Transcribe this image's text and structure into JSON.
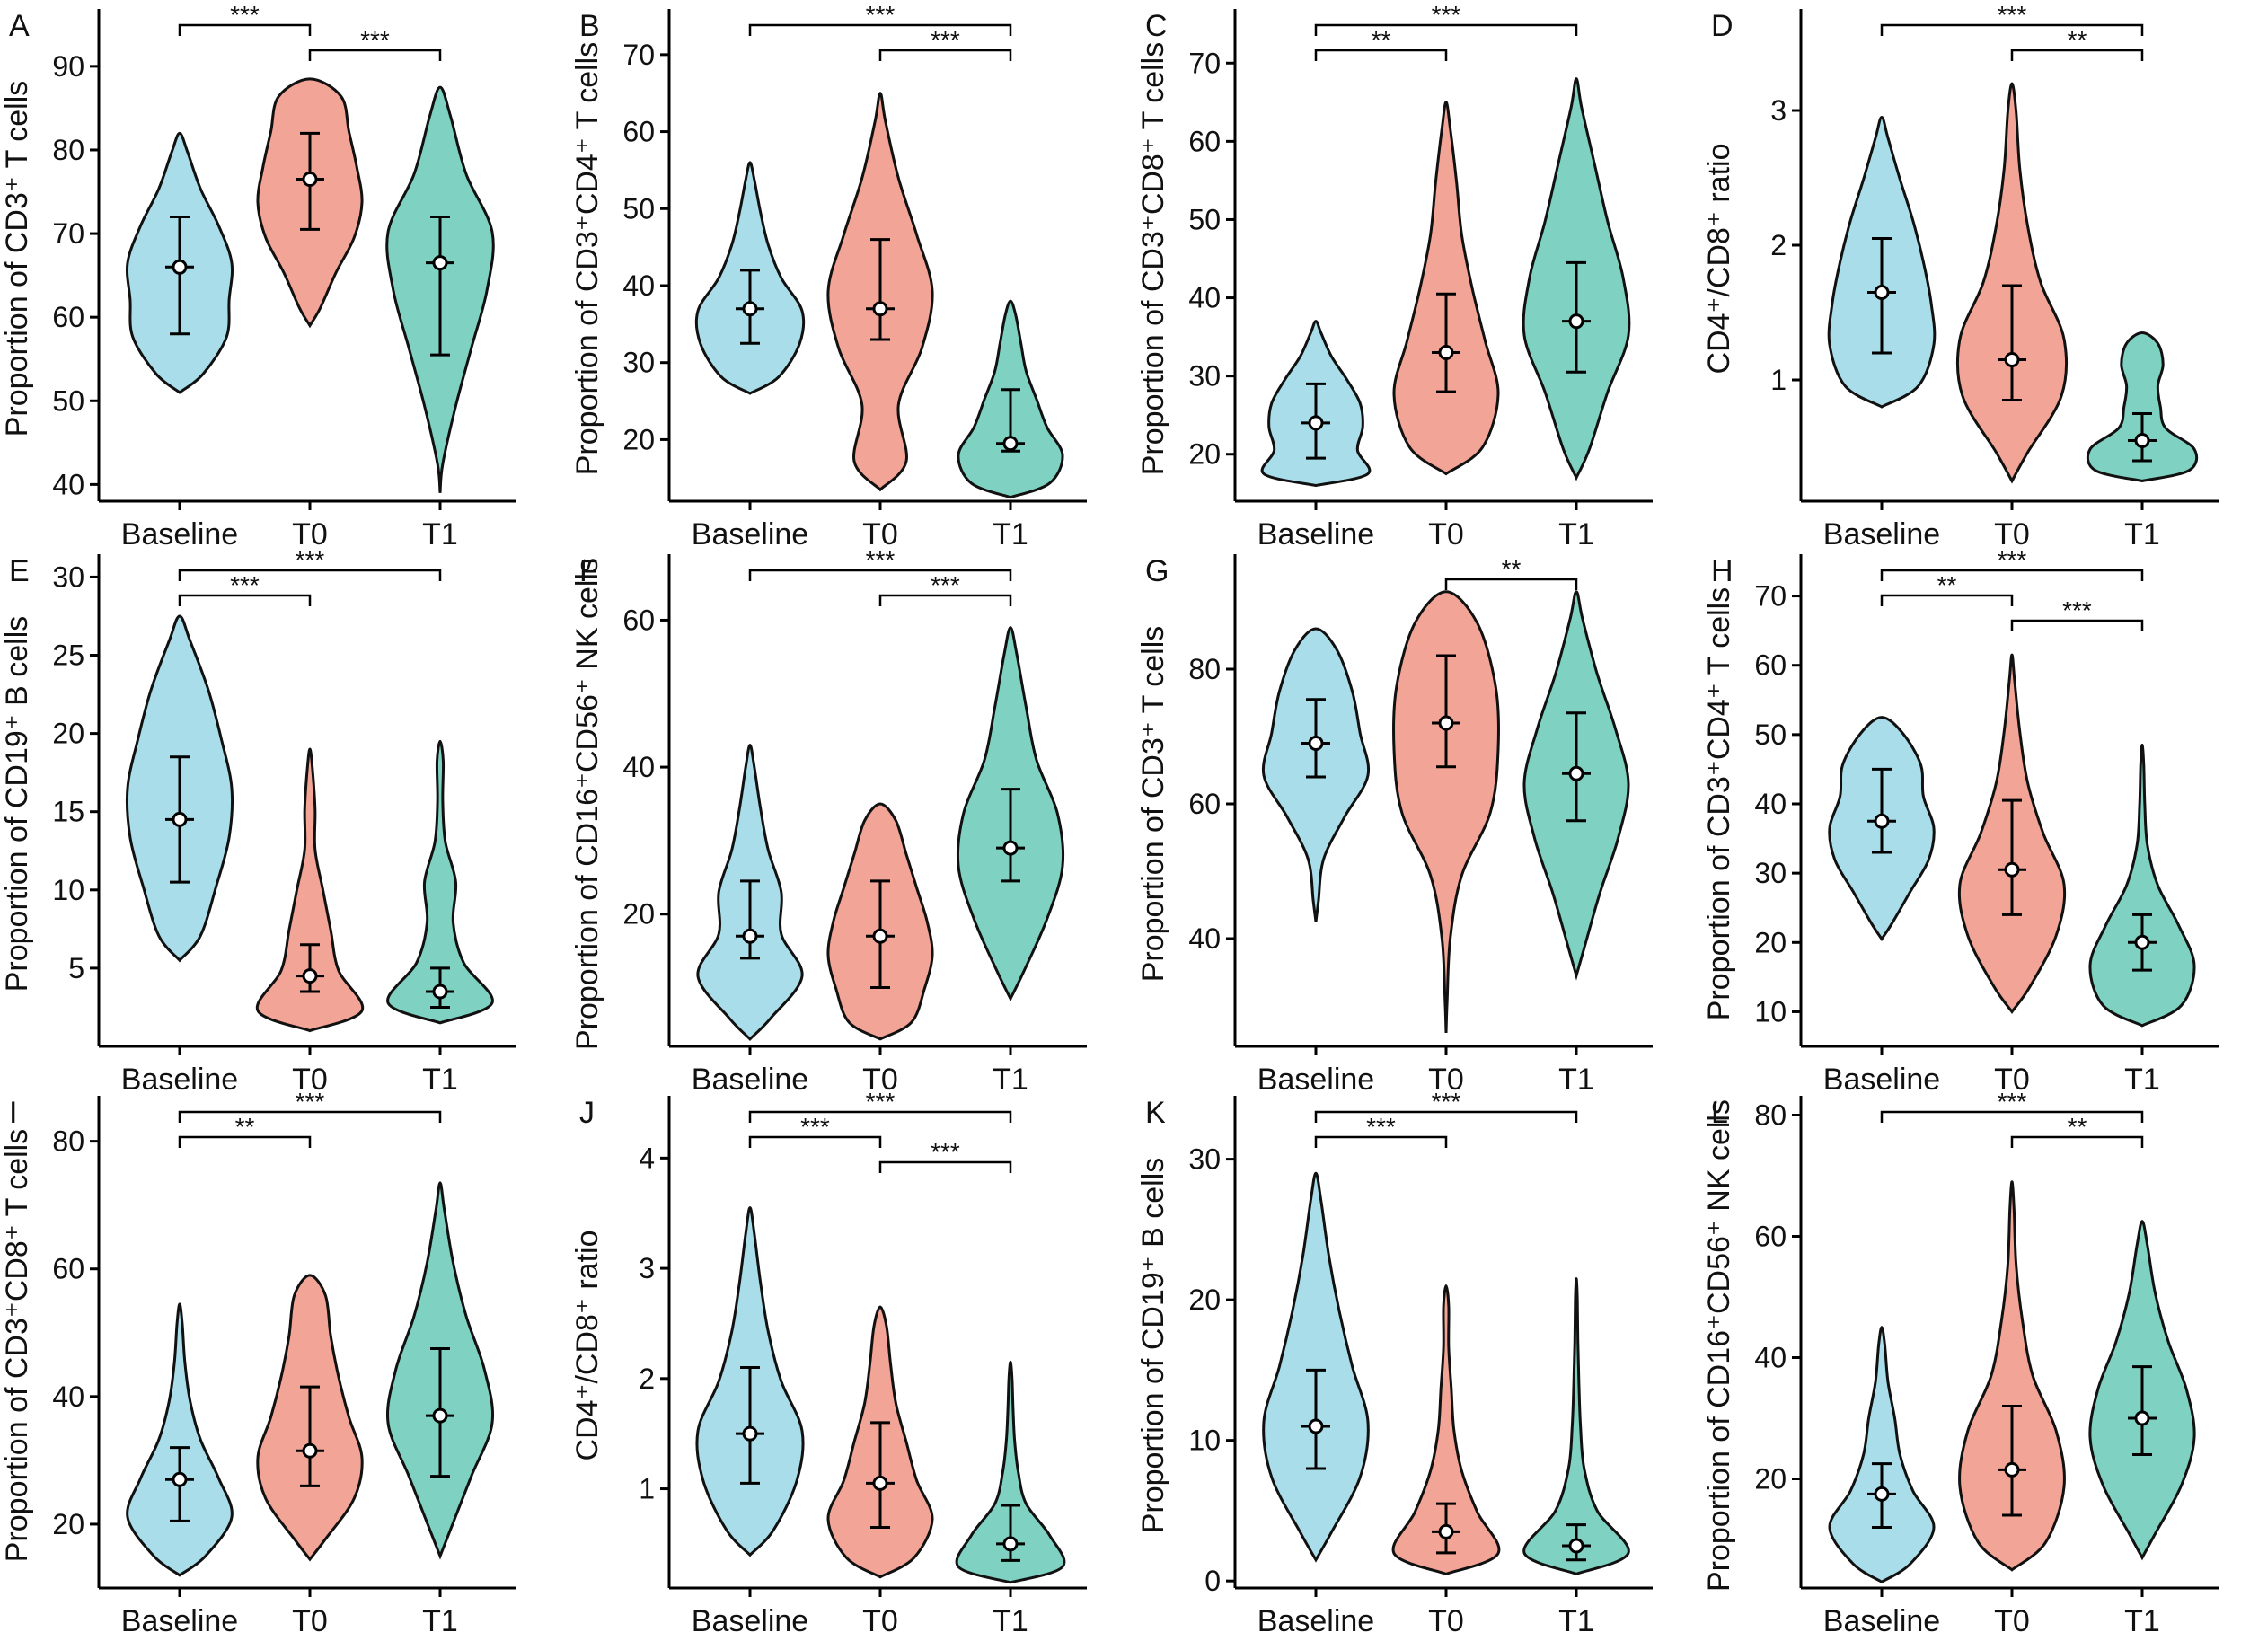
{
  "figure": {
    "group_colors": {
      "Baseline": "#a8dde9",
      "T0": "#f2a497",
      "T1": "#7fd1c1"
    },
    "panel_colors_note": "violins filled per group"
  },
  "chart_data": [
    {
      "panel": "A",
      "type": "violin",
      "ylabel": "Proportion of CD3⁺ T cells",
      "yticks": [
        40,
        50,
        60,
        70,
        80,
        90
      ],
      "ylim": [
        38,
        96
      ],
      "categories": [
        "Baseline",
        "T0",
        "T1"
      ],
      "groups": [
        {
          "name": "Baseline",
          "min": 51,
          "max": 82,
          "median": 66,
          "q1": 58,
          "q3": 72,
          "shape": [
            0.45,
            0.9,
            0.95,
            1,
            0.75,
            0.4,
            0.15
          ]
        },
        {
          "name": "T0",
          "min": 59,
          "max": 88.5,
          "median": 76.5,
          "q1": 70.5,
          "q3": 82,
          "shape": [
            0.2,
            0.5,
            0.85,
            1,
            0.9,
            0.75,
            0.6
          ]
        },
        {
          "name": "T1",
          "min": 39,
          "max": 87.5,
          "median": 66.5,
          "q1": 55.5,
          "q3": 72,
          "shape": [
            0.05,
            0.3,
            0.6,
            0.9,
            1,
            0.5,
            0.2
          ]
        }
      ],
      "brackets": [
        {
          "from": "Baseline",
          "to": "T0",
          "label": "***"
        },
        {
          "from": "T0",
          "to": "T1",
          "label": "***"
        }
      ]
    },
    {
      "panel": "B",
      "type": "violin",
      "ylabel": "Proportion of CD3⁺CD4⁺ T cells",
      "yticks": [
        20,
        30,
        40,
        50,
        60,
        70
      ],
      "ylim": [
        12,
        75
      ],
      "categories": [
        "Baseline",
        "T0",
        "T1"
      ],
      "groups": [
        {
          "name": "Baseline",
          "min": 26,
          "max": 56,
          "median": 37,
          "q1": 32.5,
          "q3": 42,
          "shape": [
            0.55,
            0.95,
            1,
            0.6,
            0.35,
            0.2,
            0.08
          ]
        },
        {
          "name": "T0",
          "min": 13.5,
          "max": 65,
          "median": 37,
          "q1": 33,
          "q3": 46,
          "shape": [
            0.5,
            0.35,
            0.8,
            1,
            0.7,
            0.35,
            0.1
          ]
        },
        {
          "name": "T1",
          "min": 12.5,
          "max": 38,
          "median": 19.5,
          "q1": 18.5,
          "q3": 26.5,
          "shape": [
            0.75,
            1,
            0.7,
            0.5,
            0.3,
            0.2,
            0.1
          ]
        }
      ],
      "brackets": [
        {
          "from": "Baseline",
          "to": "T1",
          "label": "***"
        },
        {
          "from": "T0",
          "to": "T1",
          "label": "***"
        }
      ]
    },
    {
      "panel": "C",
      "type": "violin",
      "ylabel": "Proportion of CD3⁺CD8⁺ T cells",
      "yticks": [
        20,
        30,
        40,
        50,
        60,
        70
      ],
      "ylim": [
        14,
        76
      ],
      "categories": [
        "Baseline",
        "T0",
        "T1"
      ],
      "groups": [
        {
          "name": "Baseline",
          "min": 16,
          "max": 37,
          "median": 24,
          "q1": 19.5,
          "q3": 29,
          "shape": [
            1,
            0.8,
            0.9,
            0.85,
            0.6,
            0.3,
            0.1
          ]
        },
        {
          "name": "T0",
          "min": 17.5,
          "max": 65,
          "median": 33,
          "q1": 28,
          "q3": 40.5,
          "shape": [
            0.7,
            1,
            0.75,
            0.5,
            0.3,
            0.2,
            0.08
          ]
        },
        {
          "name": "T1",
          "min": 17,
          "max": 68,
          "median": 37,
          "q1": 30.5,
          "q3": 44.5,
          "shape": [
            0.25,
            0.6,
            1,
            0.9,
            0.6,
            0.35,
            0.1
          ]
        }
      ],
      "brackets": [
        {
          "from": "Baseline",
          "to": "T0",
          "label": "**"
        },
        {
          "from": "Baseline",
          "to": "T1",
          "label": "***"
        }
      ]
    },
    {
      "panel": "D",
      "type": "violin",
      "ylabel": "CD4⁺/CD8⁺ ratio",
      "yticks": [
        1,
        2,
        3
      ],
      "ylim": [
        0.1,
        3.7
      ],
      "categories": [
        "Baseline",
        "T0",
        "T1"
      ],
      "groups": [
        {
          "name": "Baseline",
          "min": 0.8,
          "max": 2.95,
          "median": 1.65,
          "q1": 1.2,
          "q3": 2.05,
          "shape": [
            0.7,
            1,
            0.95,
            0.8,
            0.6,
            0.35,
            0.12
          ]
        },
        {
          "name": "T0",
          "min": 0.25,
          "max": 3.2,
          "median": 1.15,
          "q1": 0.85,
          "q3": 1.7,
          "shape": [
            0.3,
            0.95,
            1,
            0.55,
            0.3,
            0.15,
            0.08
          ]
        },
        {
          "name": "T1",
          "min": 0.25,
          "max": 1.35,
          "median": 0.55,
          "q1": 0.4,
          "q3": 0.75,
          "shape": [
            0.9,
            1,
            0.45,
            0.35,
            0.3,
            0.4,
            0.3
          ]
        }
      ],
      "brackets": [
        {
          "from": "Baseline",
          "to": "T1",
          "label": "***"
        },
        {
          "from": "T0",
          "to": "T1",
          "label": "**"
        }
      ]
    },
    {
      "panel": "E",
      "type": "violin",
      "ylabel": "Proportion of CD19⁺ B cells",
      "yticks": [
        5,
        10,
        15,
        20,
        25,
        30
      ],
      "ylim": [
        0,
        31
      ],
      "categories": [
        "Baseline",
        "T0",
        "T1"
      ],
      "groups": [
        {
          "name": "Baseline",
          "min": 5.5,
          "max": 27.5,
          "median": 14.5,
          "q1": 10.5,
          "q3": 18.5,
          "shape": [
            0.4,
            0.7,
            0.95,
            1,
            0.8,
            0.55,
            0.2
          ]
        },
        {
          "name": "T0",
          "min": 1,
          "max": 19,
          "median": 4.5,
          "q1": 3.5,
          "q3": 6.5,
          "shape": [
            1,
            0.55,
            0.4,
            0.25,
            0.1,
            0.1,
            0.05
          ]
        },
        {
          "name": "T1",
          "min": 1.5,
          "max": 19.5,
          "median": 3.5,
          "q1": 2.5,
          "q3": 5,
          "shape": [
            1,
            0.45,
            0.25,
            0.3,
            0.1,
            0.05,
            0.06
          ]
        }
      ],
      "brackets": [
        {
          "from": "Baseline",
          "to": "T0",
          "label": "***"
        },
        {
          "from": "Baseline",
          "to": "T1",
          "label": "***"
        }
      ]
    },
    {
      "panel": "F",
      "type": "violin",
      "ylabel": "Proportion of CD16⁺CD56⁺ NK cells",
      "yticks": [
        20,
        40,
        60
      ],
      "ylim": [
        2,
        68
      ],
      "categories": [
        "Baseline",
        "T0",
        "T1"
      ],
      "groups": [
        {
          "name": "Baseline",
          "min": 3,
          "max": 43,
          "median": 17,
          "q1": 14,
          "q3": 24.5,
          "shape": [
            0.4,
            1,
            0.6,
            0.6,
            0.35,
            0.2,
            0.08
          ]
        },
        {
          "name": "T0",
          "min": 3,
          "max": 35,
          "median": 17,
          "q1": 10,
          "q3": 24.5,
          "shape": [
            0.6,
            0.85,
            1,
            0.9,
            0.7,
            0.5,
            0.3
          ]
        },
        {
          "name": "T1",
          "min": 8.5,
          "max": 59,
          "median": 29,
          "q1": 24.5,
          "q3": 37,
          "shape": [
            0.25,
            0.7,
            1,
            0.9,
            0.5,
            0.3,
            0.12
          ]
        }
      ],
      "brackets": [
        {
          "from": "Baseline",
          "to": "T1",
          "label": "***"
        },
        {
          "from": "T0",
          "to": "T1",
          "label": "***"
        }
      ]
    },
    {
      "panel": "G",
      "type": "violin",
      "ylabel": "Proportion of CD3⁺ T cells",
      "yticks": [
        40,
        60,
        80
      ],
      "ylim": [
        24,
        96
      ],
      "categories": [
        "Baseline",
        "T0",
        "T1"
      ],
      "groups": [
        {
          "name": "Baseline",
          "min": 42.5,
          "max": 86,
          "median": 69,
          "q1": 64,
          "q3": 75.5,
          "shape": [
            0.05,
            0.15,
            0.55,
            1,
            0.85,
            0.7,
            0.4
          ]
        },
        {
          "name": "T0",
          "min": 26,
          "max": 91.5,
          "median": 72,
          "q1": 65.5,
          "q3": 82,
          "shape": [
            0.02,
            0.08,
            0.3,
            0.85,
            1,
            0.95,
            0.6
          ]
        },
        {
          "name": "T1",
          "min": 34.5,
          "max": 91.5,
          "median": 64.5,
          "q1": 57.5,
          "q3": 73.5,
          "shape": [
            0.15,
            0.45,
            0.8,
            1,
            0.75,
            0.4,
            0.12
          ]
        }
      ],
      "brackets": [
        {
          "from": "T0",
          "to": "T1",
          "label": "**"
        }
      ]
    },
    {
      "panel": "H",
      "type": "violin",
      "ylabel": "Proportion of CD3⁺CD4⁺ T cells",
      "yticks": [
        10,
        20,
        30,
        40,
        50,
        60,
        70
      ],
      "ylim": [
        5,
        75
      ],
      "categories": [
        "Baseline",
        "T0",
        "T1"
      ],
      "groups": [
        {
          "name": "Baseline",
          "min": 20.5,
          "max": 52.5,
          "median": 37.5,
          "q1": 33,
          "q3": 45,
          "shape": [
            0.2,
            0.55,
            0.9,
            1,
            0.8,
            0.75,
            0.4
          ]
        },
        {
          "name": "T0",
          "min": 10,
          "max": 61.5,
          "median": 30.5,
          "q1": 24,
          "q3": 40.5,
          "shape": [
            0.35,
            0.85,
            1,
            0.6,
            0.3,
            0.15,
            0.05
          ]
        },
        {
          "name": "T1",
          "min": 8,
          "max": 48.5,
          "median": 20,
          "q1": 16,
          "q3": 24,
          "shape": [
            0.75,
            1,
            0.7,
            0.3,
            0.1,
            0.05,
            0.03
          ]
        }
      ],
      "brackets": [
        {
          "from": "Baseline",
          "to": "T0",
          "label": "**"
        },
        {
          "from": "Baseline",
          "to": "T1",
          "label": "***"
        },
        {
          "from": "T0",
          "to": "T1",
          "label": "***"
        }
      ]
    },
    {
      "panel": "I",
      "type": "violin",
      "ylabel": "Proportion of CD3⁺CD8⁺ T cells",
      "yticks": [
        20,
        40,
        60,
        80
      ],
      "ylim": [
        10,
        86
      ],
      "categories": [
        "Baseline",
        "T0",
        "T1"
      ],
      "groups": [
        {
          "name": "Baseline",
          "min": 12,
          "max": 54.5,
          "median": 27,
          "q1": 20.5,
          "q3": 32,
          "shape": [
            0.5,
            1,
            0.75,
            0.4,
            0.2,
            0.1,
            0.05
          ]
        },
        {
          "name": "T0",
          "min": 14.5,
          "max": 59,
          "median": 31.5,
          "q1": 26,
          "q3": 41.5,
          "shape": [
            0.3,
            0.85,
            1,
            0.75,
            0.55,
            0.4,
            0.3
          ]
        },
        {
          "name": "T1",
          "min": 15,
          "max": 73.5,
          "median": 37,
          "q1": 27.5,
          "q3": 47.5,
          "shape": [
            0.2,
            0.6,
            1,
            0.85,
            0.5,
            0.25,
            0.08
          ]
        }
      ],
      "brackets": [
        {
          "from": "Baseline",
          "to": "T0",
          "label": "**"
        },
        {
          "from": "Baseline",
          "to": "T1",
          "label": "***"
        }
      ]
    },
    {
      "panel": "J",
      "type": "violin",
      "ylabel": "CD4⁺/CD8⁺ ratio",
      "yticks": [
        1,
        2,
        3,
        4
      ],
      "ylim": [
        0.1,
        4.5
      ],
      "categories": [
        "Baseline",
        "T0",
        "T1"
      ],
      "groups": [
        {
          "name": "Baseline",
          "min": 0.4,
          "max": 3.55,
          "median": 1.5,
          "q1": 1.05,
          "q3": 2.1,
          "shape": [
            0.45,
            0.9,
            1,
            0.6,
            0.35,
            0.2,
            0.08
          ]
        },
        {
          "name": "T0",
          "min": 0.2,
          "max": 2.65,
          "median": 1.05,
          "q1": 0.65,
          "q3": 1.6,
          "shape": [
            0.65,
            1,
            0.7,
            0.5,
            0.3,
            0.2,
            0.12
          ]
        },
        {
          "name": "T1",
          "min": 0.15,
          "max": 2.15,
          "median": 0.5,
          "q1": 0.35,
          "q3": 0.85,
          "shape": [
            1,
            0.75,
            0.3,
            0.15,
            0.08,
            0.05,
            0.03
          ]
        }
      ],
      "brackets": [
        {
          "from": "Baseline",
          "to": "T0",
          "label": "***"
        },
        {
          "from": "Baseline",
          "to": "T1",
          "label": "***"
        },
        {
          "from": "T0",
          "to": "T1",
          "label": "***"
        }
      ]
    },
    {
      "panel": "K",
      "type": "violin",
      "ylabel": "Proportion of CD19⁺ B cells",
      "yticks": [
        0,
        10,
        20,
        30
      ],
      "ylim": [
        -0.5,
        34
      ],
      "categories": [
        "Baseline",
        "T0",
        "T1"
      ],
      "groups": [
        {
          "name": "Baseline",
          "min": 1.5,
          "max": 29,
          "median": 11,
          "q1": 8,
          "q3": 15,
          "shape": [
            0.3,
            0.85,
            1,
            0.7,
            0.45,
            0.25,
            0.1
          ]
        },
        {
          "name": "T0",
          "min": 0.5,
          "max": 21,
          "median": 3.5,
          "q1": 2,
          "q3": 5.5,
          "shape": [
            1,
            0.6,
            0.3,
            0.15,
            0.1,
            0.05,
            0.05
          ]
        },
        {
          "name": "T1",
          "min": 0.5,
          "max": 21.5,
          "median": 2.5,
          "q1": 1.5,
          "q3": 4,
          "shape": [
            1,
            0.4,
            0.15,
            0.08,
            0.05,
            0.03,
            0.02
          ]
        }
      ],
      "brackets": [
        {
          "from": "Baseline",
          "to": "T0",
          "label": "***"
        },
        {
          "from": "Baseline",
          "to": "T1",
          "label": "***"
        }
      ]
    },
    {
      "panel": "L",
      "type": "violin",
      "ylabel": "Proportion of CD16⁺CD56⁺ NK cells",
      "yticks": [
        20,
        40,
        60,
        80
      ],
      "ylim": [
        2,
        82
      ],
      "categories": [
        "Baseline",
        "T0",
        "T1"
      ],
      "groups": [
        {
          "name": "Baseline",
          "min": 3,
          "max": 45,
          "median": 17.5,
          "q1": 12,
          "q3": 22.5,
          "shape": [
            0.55,
            1,
            0.6,
            0.35,
            0.25,
            0.12,
            0.06
          ]
        },
        {
          "name": "T0",
          "min": 5,
          "max": 69,
          "median": 21.5,
          "q1": 14,
          "q3": 32,
          "shape": [
            0.65,
            1,
            0.85,
            0.4,
            0.2,
            0.08,
            0.04
          ]
        },
        {
          "name": "T1",
          "min": 7,
          "max": 62.5,
          "median": 30,
          "q1": 24,
          "q3": 38.5,
          "shape": [
            0.25,
            0.75,
            1,
            0.85,
            0.5,
            0.25,
            0.1
          ]
        }
      ],
      "brackets": [
        {
          "from": "Baseline",
          "to": "T1",
          "label": "***"
        },
        {
          "from": "T0",
          "to": "T1",
          "label": "**"
        }
      ]
    }
  ]
}
